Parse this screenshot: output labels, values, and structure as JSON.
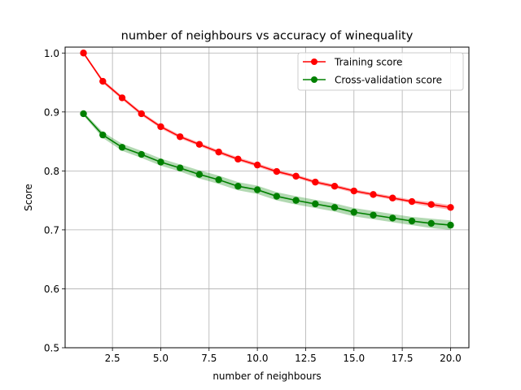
{
  "chart_data": {
    "type": "line",
    "title": "number of neighbours vs accuracy of winequality",
    "xlabel": "number of neighbours",
    "ylabel": "Score",
    "xlim": [
      0.05,
      20.95
    ],
    "ylim": [
      0.5,
      1.01
    ],
    "x_ticks": [
      2.5,
      5.0,
      7.5,
      10.0,
      12.5,
      15.0,
      17.5,
      20.0
    ],
    "x_tick_labels": [
      "2.5",
      "5.0",
      "7.5",
      "10.0",
      "12.5",
      "15.0",
      "17.5",
      "20.0"
    ],
    "y_ticks": [
      0.5,
      0.6,
      0.7,
      0.8,
      0.9,
      1.0
    ],
    "y_tick_labels": [
      "0.5",
      "0.6",
      "0.7",
      "0.8",
      "0.9",
      "1.0"
    ],
    "grid": true,
    "legend_position": "top-right",
    "x": [
      1,
      2,
      3,
      4,
      5,
      6,
      7,
      8,
      9,
      10,
      11,
      12,
      13,
      14,
      15,
      16,
      17,
      18,
      19,
      20
    ],
    "series": [
      {
        "name": "Training score",
        "color": "#ff0000",
        "band_color": "#ff0000",
        "values": [
          1.0,
          0.952,
          0.924,
          0.897,
          0.875,
          0.858,
          0.845,
          0.832,
          0.82,
          0.81,
          0.799,
          0.791,
          0.781,
          0.774,
          0.766,
          0.76,
          0.754,
          0.748,
          0.743,
          0.738
        ],
        "band": [
          0.002,
          0.003,
          0.003,
          0.003,
          0.003,
          0.003,
          0.003,
          0.003,
          0.003,
          0.003,
          0.003,
          0.003,
          0.003,
          0.003,
          0.003,
          0.003,
          0.003,
          0.003,
          0.004,
          0.004
        ]
      },
      {
        "name": "Cross-validation score",
        "color": "#008000",
        "band_color": "#008000",
        "values": [
          0.897,
          0.861,
          0.84,
          0.828,
          0.815,
          0.805,
          0.794,
          0.785,
          0.774,
          0.768,
          0.757,
          0.75,
          0.744,
          0.738,
          0.73,
          0.725,
          0.72,
          0.715,
          0.711,
          0.708
        ],
        "band": [
          0.003,
          0.005,
          0.006,
          0.006,
          0.006,
          0.006,
          0.007,
          0.007,
          0.007,
          0.007,
          0.007,
          0.007,
          0.007,
          0.007,
          0.007,
          0.007,
          0.007,
          0.007,
          0.008,
          0.008
        ]
      }
    ]
  }
}
